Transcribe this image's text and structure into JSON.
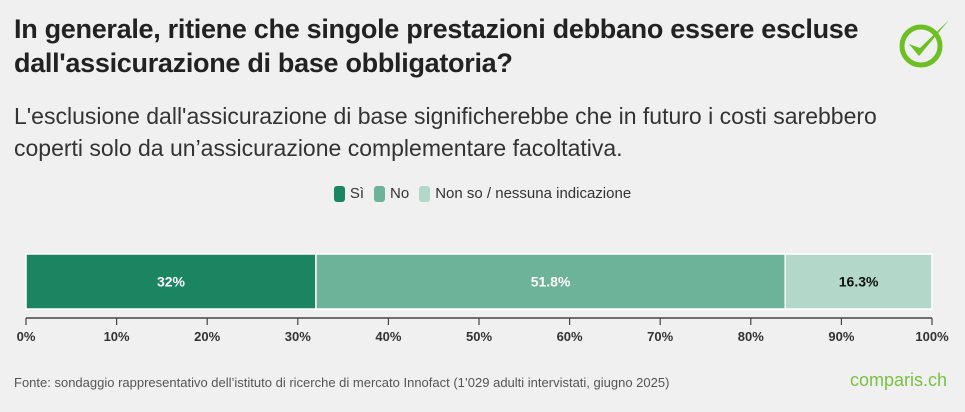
{
  "title": "In generale, ritiene che singole prestazioni debbano essere escluse dall'assicurazione di base obbligatoria?",
  "subtitle": "L'esclusione dall'assicurazione di base significherebbe che in futuro i costi sarebbero coperti solo da un’assicurazione complementare facoltativa.",
  "source": "Fonte: sondaggio rappresentativo dell’istituto di ricerche di mercato Innofact (1’029 adulti intervistati, giugno 2025)",
  "brand": "comparis.ch",
  "icons": {
    "top_right": "check-circle-icon"
  },
  "chart_data": {
    "type": "stacked-bar-horizontal",
    "legend_position": "top",
    "xlim": [
      0,
      100
    ],
    "x_ticks": [
      "0%",
      "10%",
      "20%",
      "30%",
      "40%",
      "50%",
      "60%",
      "70%",
      "80%",
      "90%",
      "100%"
    ],
    "series": [
      {
        "name": "Sì",
        "value": 32,
        "label": "32%",
        "color": "#1a8560",
        "label_color": "#ffffff"
      },
      {
        "name": "No",
        "value": 51.8,
        "label": "51.8%",
        "color": "#6cb399",
        "label_color": "#ffffff"
      },
      {
        "name": "Non so / nessuna indicazione",
        "value": 16.3,
        "label": "16.3%",
        "color": "#b3d8ca",
        "label_color": "#111111"
      }
    ]
  }
}
